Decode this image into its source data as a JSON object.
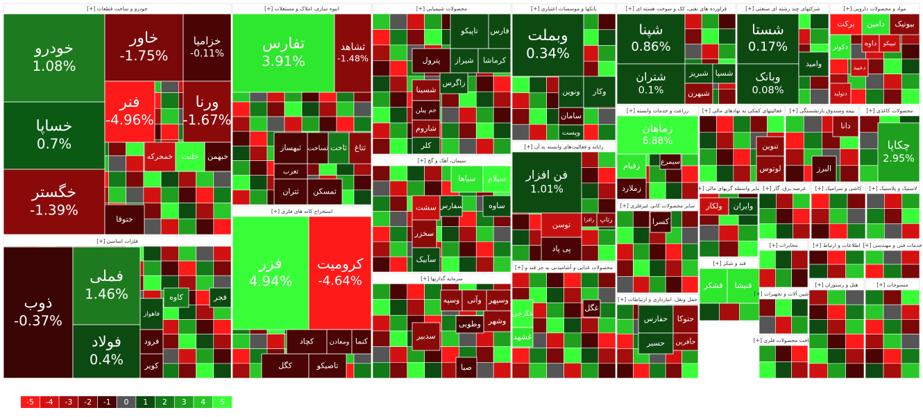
{
  "sectors": [
    {
      "title": "خودرو و ساخت قطعات [+]",
      "tiles": [
        {
          "name": "خودرو",
          "change": "1.08%",
          "color": "#1e7a1e"
        },
        {
          "name": "خساپا",
          "change": "0.7%",
          "color": "#0a5a14"
        },
        {
          "name": "خگستر",
          "change": "-1.39%",
          "color": "#8a0a0a"
        },
        {
          "name": "خاور",
          "change": "-1.75%",
          "color": "#7a0808"
        },
        {
          "name": "خزامیا",
          "change": "-0.11%",
          "color": "#4a0404"
        },
        {
          "name": "فنر",
          "change": "-4.96%",
          "color": "#ff1a1a"
        },
        {
          "name": "ورنا",
          "change": "-1.67%",
          "color": "#8a0a0a"
        },
        {
          "name": "خمحرکه",
          "color": "#c80f0f"
        },
        {
          "name": "خلنت",
          "color": "#39ff39"
        },
        {
          "name": "خبهمن",
          "color": "#4a0404"
        },
        {
          "name": "ختوقا",
          "color": "#4a0404"
        }
      ]
    },
    {
      "title": "فلزات اساسی [+]",
      "tiles": [
        {
          "name": "ذوب",
          "change": "-0.37%",
          "color": "#3a0404"
        },
        {
          "name": "فملی",
          "change": "1.46%",
          "color": "#1e7a1e"
        },
        {
          "name": "فولاد",
          "change": "0.4%",
          "color": "#0c4a12"
        },
        {
          "name": "کاوه",
          "color": "#127a18"
        },
        {
          "name": "فجر",
          "color": "#0c4a12"
        },
        {
          "name": "فاهواز",
          "color": "#0c4a12"
        },
        {
          "name": "فرود",
          "color": "#4a0404"
        },
        {
          "name": "کویر",
          "color": "#4a0404"
        }
      ]
    },
    {
      "title": "انبوه سازی، املاک و مستغلات [+]",
      "tiles": [
        {
          "name": "تفارس",
          "change": "3.91%",
          "color": "#2ee82e"
        },
        {
          "name": "ثشاهد",
          "change": "-1.48%",
          "color": "#8a0a0a"
        },
        {
          "name": "ثبهساز",
          "color": "#4a0404"
        },
        {
          "name": "ثساخت",
          "color": "#4a0404"
        },
        {
          "name": "ثاخت",
          "color": "#127a18"
        },
        {
          "name": "ثتاغ",
          "color": "#8a0a0a"
        },
        {
          "name": "ثغرب",
          "color": "#4a0404"
        },
        {
          "name": "ثتران",
          "color": "#4a0404"
        },
        {
          "name": "ثمسکن",
          "color": "#4a0404"
        }
      ]
    },
    {
      "title": "استخراج کانه های فلزی [+]",
      "tiles": [
        {
          "name": "فزر",
          "change": "4.94%",
          "color": "#39ff39"
        },
        {
          "name": "کرومیت",
          "change": "-4.64%",
          "color": "#ff1a1a"
        },
        {
          "name": "کچاد",
          "color": "#4a0404"
        },
        {
          "name": "ومعادن",
          "color": "#4a0404"
        },
        {
          "name": "کنما",
          "color": "#4a0404"
        },
        {
          "name": "کگل",
          "color": "#4a0404"
        },
        {
          "name": "تاصیکو",
          "color": "#4a0404"
        }
      ]
    },
    {
      "title": "محصولات شیمیایی [+]",
      "tiles": [
        {
          "name": "تاپیکو",
          "color": "#0c4a12"
        },
        {
          "name": "فارس",
          "color": "#0c4a12"
        },
        {
          "name": "پترول",
          "color": "#4a0404"
        },
        {
          "name": "شیراز",
          "color": "#0c4a12"
        },
        {
          "name": "کرماشا",
          "color": "#0c4a12"
        },
        {
          "name": "شسینا",
          "color": "#8a0a0a"
        },
        {
          "name": "زاگرس",
          "color": "#0c4a12"
        },
        {
          "name": "جم پیلن",
          "color": "#4a0404"
        },
        {
          "name": "شاروم",
          "color": "#8a0a0a"
        },
        {
          "name": "کلر",
          "color": "#0c4a12"
        }
      ]
    },
    {
      "title": "سیمان، آهک و گچ [+]",
      "tiles": [
        {
          "name": "سیلام",
          "color": "#39ff39"
        },
        {
          "name": "سیاها",
          "color": "#2ee82e"
        },
        {
          "name": "سشت",
          "color": "#c80f0f"
        },
        {
          "name": "سفارس",
          "color": "#0c4a12"
        },
        {
          "name": "ساوه",
          "color": "#0c4a12"
        },
        {
          "name": "سخزر",
          "color": "#8a0a0a"
        },
        {
          "name": "سآبیک",
          "color": "#0c4a12"
        }
      ]
    },
    {
      "title": "سرمایه گذاریها [+]",
      "tiles": [
        {
          "name": "سدبیر",
          "color": "#8a0a0a"
        },
        {
          "name": "وسپه",
          "color": "#8a0a0a"
        },
        {
          "name": "وآتی",
          "color": "#8a0a0a"
        },
        {
          "name": "وسپهر",
          "color": "#8a0a0a"
        },
        {
          "name": "وشهر",
          "color": "#8a0a0a"
        },
        {
          "name": "وطوبی",
          "color": "#4a0404"
        },
        {
          "name": "صبا",
          "color": "#4a0404"
        }
      ]
    },
    {
      "title": "بانکها و موسسات اعتباری [+]",
      "tiles": [
        {
          "name": "وبملت",
          "change": "0.34%",
          "color": "#0c4a12"
        },
        {
          "name": "ونوین",
          "color": "#0c4a12"
        },
        {
          "name": "وکار",
          "color": "#0c4a12"
        },
        {
          "name": "سامان",
          "color": "#4a0404"
        },
        {
          "name": "وپست",
          "color": "#0c4a12"
        }
      ]
    },
    {
      "title": "رایانه و فعالیت‌های وابسته به آن [+]",
      "tiles": [
        {
          "name": "فن افزار",
          "change": "1.01%",
          "color": "#0c4a12"
        },
        {
          "name": "توسن",
          "color": "#c80f0f"
        },
        {
          "name": "پی پاد",
          "color": "#4a0404"
        },
        {
          "name": "رتاپ",
          "color": "#8a0a0a"
        },
        {
          "name": "رافزا",
          "color": "#8a0a0a"
        }
      ]
    },
    {
      "title": "محصولات غذایی و آشامیدنی به جز قند و [+]",
      "tiles": [
        {
          "name": "غگرجی",
          "color": "#39ff39"
        },
        {
          "name": "غشهد",
          "color": "#2ee82e"
        },
        {
          "name": "غگل",
          "color": "#4a0404"
        }
      ]
    },
    {
      "title": "فراورده های نفتی، کک و سوخت هسته ای [+]",
      "tiles": [
        {
          "name": "شپنا",
          "change": "0.86%",
          "color": "#0c4a12"
        },
        {
          "name": "شتران",
          "change": "0.1%",
          "color": "#0c4a12"
        },
        {
          "name": "شبریز",
          "color": "#0c4a12"
        },
        {
          "name": "شسپا",
          "color": "#0c4a12"
        },
        {
          "name": "شبهرن",
          "color": "#8a0a0a"
        }
      ]
    },
    {
      "title": "شرکتهای چند رشته ای صنعتی [+]",
      "tiles": [
        {
          "name": "شستا",
          "change": "0.17%",
          "color": "#0c4a12"
        },
        {
          "name": "وبانک",
          "change": "0.08%",
          "color": "#0c4a12"
        },
        {
          "name": "وامید",
          "color": "#0c4a12"
        }
      ]
    },
    {
      "title": "مواد و محصولات دارویی [+]",
      "tiles": [
        {
          "name": "برکت",
          "color": "#ff1a1a"
        },
        {
          "name": "دامین",
          "color": "#2ee82e"
        },
        {
          "name": "بیوتیک",
          "color": "#8a0a0a"
        },
        {
          "name": "دکوثر",
          "color": "#2ee82e"
        },
        {
          "name": "داوه",
          "color": "#c80f0f"
        },
        {
          "name": "تیپیکو",
          "color": "#c80f0f"
        },
        {
          "name": "دعبید",
          "color": "#c80f0f"
        },
        {
          "name": "دتولید",
          "color": "#c80f0f"
        }
      ]
    },
    {
      "title": "زراعت و خدمات وابسته [+]",
      "tiles": [
        {
          "name": "زماهان",
          "change": "6.88%",
          "color": "#39ff39"
        },
        {
          "name": "زقیام",
          "color": "#2ee82e"
        },
        {
          "name": "سیمرغ",
          "color": "#4a0404"
        },
        {
          "name": "زملارد",
          "color": "#4a0404"
        }
      ]
    },
    {
      "title": "فعالیتهای کمکی به نهادهای مالی [+]",
      "tiles": [
        {
          "name": "تنوین",
          "color": "#8a0a0a"
        },
        {
          "name": "لوتوس",
          "color": "#8a0a0a"
        }
      ]
    },
    {
      "title": "بیمه وصندوق بازنشستگی [+]",
      "tiles": [
        {
          "name": "دانا",
          "color": "#8a0a0a"
        },
        {
          "name": "البرز",
          "color": "#4a0404"
        }
      ]
    },
    {
      "title": "محصولات کاغذی [+]",
      "tiles": [
        {
          "name": "چکاپا",
          "change": "2.95%",
          "color": "#1ea01e"
        }
      ]
    },
    {
      "title": "سایر محصولات کانی غیرفلزی [+]",
      "tiles": [
        {
          "name": "کسرا",
          "color": "#4a0404"
        }
      ]
    },
    {
      "title": "قند و شکر [+]",
      "tiles": [
        {
          "name": "قشکر",
          "color": "#2ee82e"
        },
        {
          "name": "قنیشا",
          "color": "#2ee82e"
        }
      ]
    },
    {
      "title": "حمل ونقل، انبارداری و ارتباطات [+]",
      "tiles": [
        {
          "name": "حفارس",
          "color": "#0c4a12"
        },
        {
          "name": "حسیر",
          "color": "#0c4a12"
        },
        {
          "name": "حتوکا",
          "color": "#8a0a0a"
        },
        {
          "name": "حآفرین",
          "color": "#8a0a0a"
        }
      ]
    },
    {
      "title": "سایر واسطه گریهای مالی [+]",
      "tiles": [
        {
          "name": "ولکار",
          "color": "#c80f0f"
        },
        {
          "name": "وایران",
          "color": "#0c4a12"
        }
      ]
    },
    {
      "title": "عرضه برق، گاز [+]",
      "tiles": []
    },
    {
      "title": "کاشی و سرامیک [+]",
      "tiles": []
    },
    {
      "title": "لاستیک و پلاستیک [+]",
      "tiles": []
    },
    {
      "title": "مخابرات [+]",
      "tiles": []
    },
    {
      "title": "اطلاعات و ارتباط [+]",
      "tiles": []
    },
    {
      "title": "خدمات فنی و مهندسی [+]",
      "tiles": []
    },
    {
      "title": "ماشین آلات و تجهیزات [+]",
      "tiles": []
    },
    {
      "title": "ساخت محصولات فلزی [+]",
      "tiles": []
    },
    {
      "title": "هتل و رستوران [+]",
      "tiles": []
    },
    {
      "title": "منسوجات [+]",
      "tiles": []
    }
  ],
  "legend": {
    "values": [
      -5,
      -4,
      -3,
      -2,
      -1,
      0,
      1,
      2,
      3,
      4,
      5
    ],
    "colors": [
      "#ff1a1a",
      "#d41111",
      "#a60d0d",
      "#7a0808",
      "#4a0404",
      "#555555",
      "#0c4a12",
      "#127a18",
      "#1ea01e",
      "#28c828",
      "#39ff39"
    ]
  }
}
